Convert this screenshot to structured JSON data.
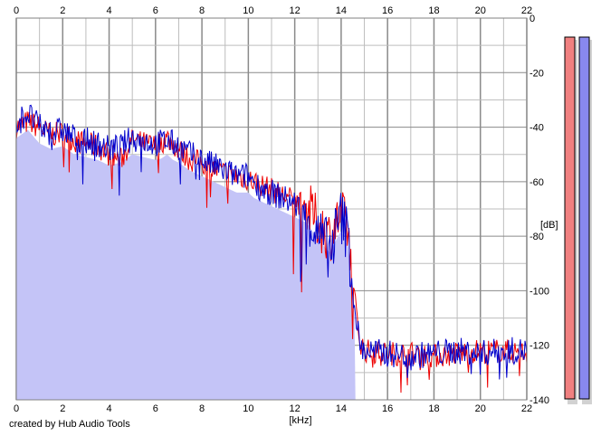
{
  "credit": "created by Hub Audio Tools",
  "chart_data": {
    "type": "area",
    "xlabel": "[kHz]",
    "ylabel": "[dB]",
    "xlim": [
      0,
      22
    ],
    "ylim": [
      -140,
      0
    ],
    "x_ticks": [
      "0",
      "2",
      "4",
      "6",
      "8",
      "10",
      "12",
      "14",
      "16",
      "18",
      "20",
      "22"
    ],
    "y_ticks": [
      "0",
      "-20",
      "-40",
      "-60",
      "-80",
      "-100",
      "-120",
      "-140"
    ],
    "grid": true,
    "colors": {
      "fill": "#c4c4f7",
      "left_channel": "#ee0000",
      "right_channel": "#0000cc",
      "meter_left": "#f08080",
      "meter_right": "#8888ee",
      "grid": "#bdbdbd",
      "major_grid": "#8a8a8a"
    },
    "series": [
      {
        "channel": "left",
        "x": [
          0,
          0.5,
          1,
          1.5,
          2,
          2.5,
          3,
          3.5,
          4,
          4.5,
          5,
          5.5,
          6,
          6.5,
          7,
          7.5,
          8,
          8.5,
          9,
          9.5,
          10,
          10.5,
          11,
          11.5,
          12,
          12.5,
          13,
          13.5,
          14,
          14.3,
          14.5,
          14.8,
          15,
          16,
          17,
          18,
          19,
          20,
          21,
          22
        ],
        "values": [
          -40,
          -38,
          -40,
          -43,
          -42,
          -45,
          -46,
          -47,
          -50,
          -52,
          -45,
          -46,
          -47,
          -44,
          -48,
          -52,
          -53,
          -55,
          -57,
          -58,
          -59,
          -61,
          -63,
          -65,
          -67,
          -69,
          -75,
          -80,
          -72,
          -78,
          -98,
          -118,
          -122,
          -123,
          -123,
          -124,
          -123,
          -122,
          -122,
          -123
        ]
      },
      {
        "channel": "right",
        "x": [
          0,
          0.5,
          1,
          1.5,
          2,
          2.5,
          3,
          3.5,
          4,
          4.5,
          5,
          5.5,
          6,
          6.5,
          7,
          7.5,
          8,
          8.5,
          9,
          9.5,
          10,
          10.5,
          11,
          11.5,
          12,
          12.5,
          13,
          13.5,
          14,
          14.3,
          14.5,
          14.8,
          15,
          16,
          17,
          18,
          19,
          20,
          21,
          22
        ],
        "values": [
          -38,
          -35,
          -40,
          -42,
          -41,
          -44,
          -45,
          -46,
          -48,
          -47,
          -44,
          -45,
          -46,
          -45,
          -47,
          -50,
          -52,
          -54,
          -56,
          -58,
          -58,
          -62,
          -64,
          -66,
          -68,
          -72,
          -80,
          -85,
          -73,
          -80,
          -100,
          -120,
          -122,
          -123,
          -124,
          -123,
          -122,
          -123,
          -122,
          -122
        ]
      }
    ]
  }
}
